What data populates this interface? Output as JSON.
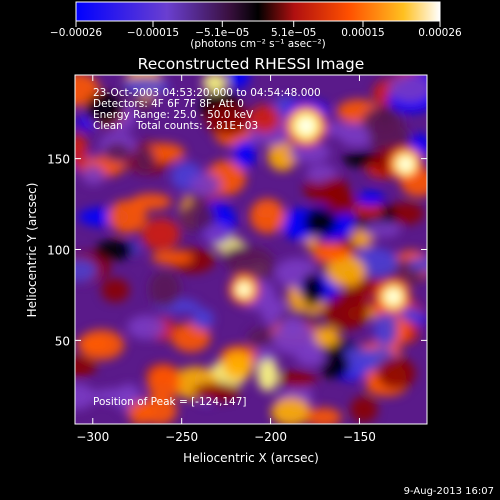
{
  "chart_data": {
    "type": "heatmap",
    "title": "Reconstructed RHESSI Image",
    "xlabel": "Heliocentric X (arcsec)",
    "ylabel": "Heliocentric Y (arcsec)",
    "xlim": [
      -310,
      -112
    ],
    "ylim": [
      4,
      196
    ],
    "x_ticks": [
      -300,
      -250,
      -200,
      -150
    ],
    "x_tick_labels": [
      "−300",
      "−250",
      "−200",
      "−150"
    ],
    "y_ticks": [
      50,
      100,
      150
    ],
    "y_tick_labels": [
      "50",
      "100",
      "150"
    ],
    "colorbar": {
      "range": [
        -0.00026,
        0.00026
      ],
      "ticks": [
        -0.00026,
        -0.00015,
        -5.1e-05,
        5.1e-05,
        0.00015,
        0.00026
      ],
      "tick_labels": [
        "−0.00026",
        "−0.00015",
        "−5.1e−05",
        "5.1e−05",
        "0.00015",
        "0.00026"
      ],
      "unit_label": "(photons cm⁻² s⁻¹ asec⁻²)",
      "colors": [
        "#0000ff",
        "#4b3fd6",
        "#7a3cc4",
        "#5a1a55",
        "#000000",
        "#8b0000",
        "#d21f12",
        "#ff5a00",
        "#ffb000",
        "#ffff80",
        "#ffffff"
      ]
    },
    "info_lines": [
      "23-Oct-2003 04:53:20.000 to 04:54:48.000",
      "Detectors: 4F 6F 7F 8F, Att 0",
      "Energy Range: 25.0 - 50.0 keV",
      "Clean    Total counts: 2.81E+03"
    ],
    "peak_text": "Position of Peak = [-124,147]",
    "peak": {
      "x": -124,
      "y": 147
    }
  },
  "footer": {
    "date": "9-Aug-2013 16:07"
  }
}
